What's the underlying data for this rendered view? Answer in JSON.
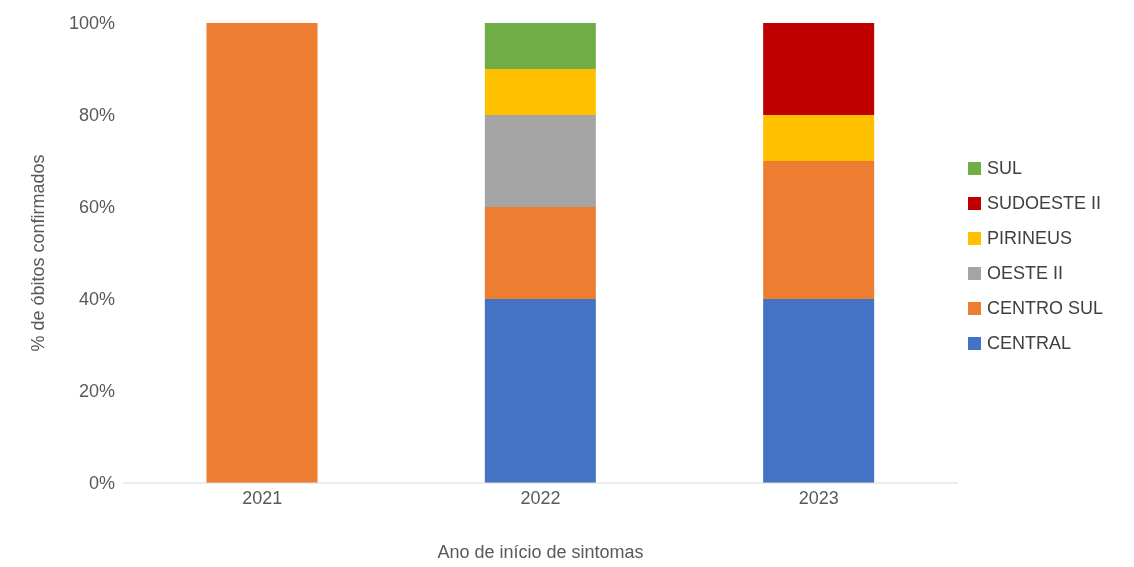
{
  "chart_data": {
    "type": "bar",
    "stacked": true,
    "xlabel": "Ano de início de sintomas",
    "ylabel": "% de óbitos confirmados",
    "categories": [
      "2021",
      "2022",
      "2023"
    ],
    "series": [
      {
        "name": "CENTRAL",
        "color": "#4472c4",
        "values": [
          0,
          40,
          40
        ]
      },
      {
        "name": "CENTRO SUL",
        "color": "#ed7d31",
        "values": [
          100,
          20,
          30
        ]
      },
      {
        "name": "OESTE II",
        "color": "#a5a5a5",
        "values": [
          0,
          20,
          0
        ]
      },
      {
        "name": "PIRINEUS",
        "color": "#ffc000",
        "values": [
          0,
          10,
          10
        ]
      },
      {
        "name": "SUDOESTE II",
        "color": "#c00000",
        "values": [
          0,
          0,
          20
        ]
      },
      {
        "name": "SUL",
        "color": "#70ad47",
        "values": [
          0,
          10,
          0
        ]
      }
    ],
    "ylim": [
      0,
      100
    ],
    "yticks": [
      {
        "value": 0,
        "label": "0%"
      },
      {
        "value": 20,
        "label": "20%"
      },
      {
        "value": 40,
        "label": "40%"
      },
      {
        "value": 60,
        "label": "60%"
      },
      {
        "value": 80,
        "label": "80%"
      },
      {
        "value": 100,
        "label": "100%"
      }
    ],
    "grid": false,
    "legend": "right"
  }
}
